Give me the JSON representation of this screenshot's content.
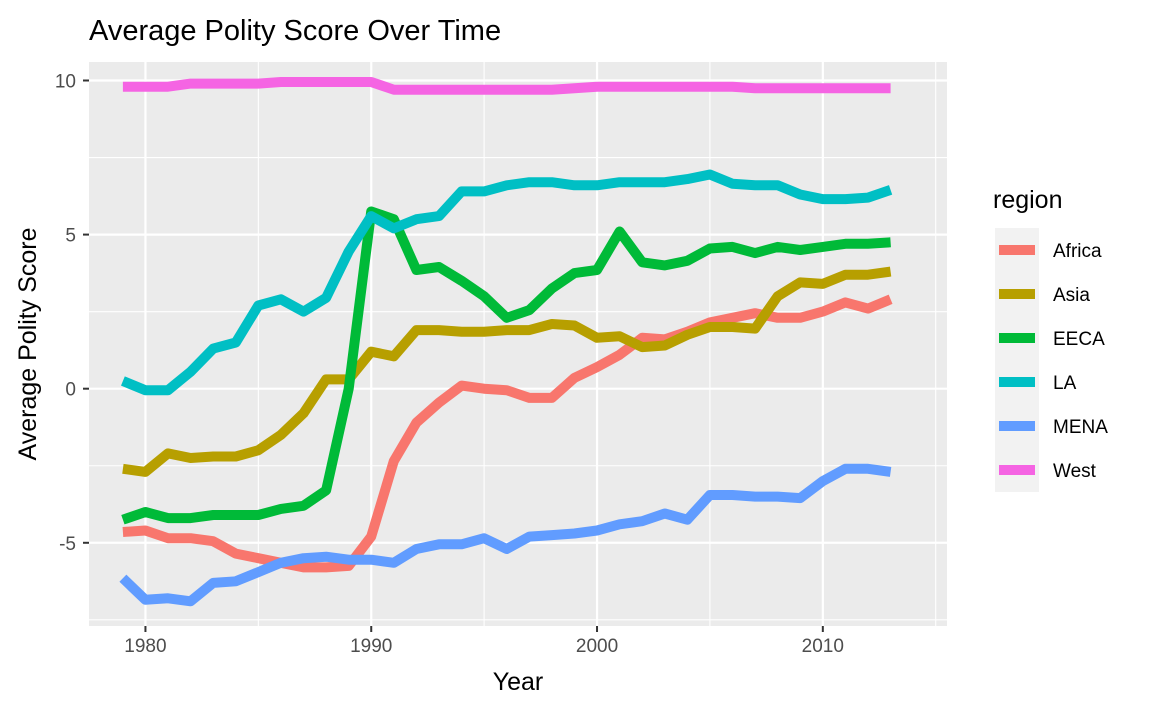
{
  "chart_data": {
    "type": "line",
    "title": "Average Polity Score Over Time",
    "xlabel": "Year",
    "ylabel": "Average Polity Score",
    "xlim": [
      1977.5,
      2015.5
    ],
    "ylim": [
      -7.7,
      10.6
    ],
    "x_ticks": [
      1980,
      1990,
      2000,
      2010
    ],
    "x_tick_labels": [
      "1980",
      "1990",
      "2000",
      "2010"
    ],
    "y_ticks": [
      -5,
      0,
      5,
      10
    ],
    "y_tick_labels": [
      "-5",
      "0",
      "5",
      "10"
    ],
    "grid": true,
    "legend": {
      "title": "region",
      "position": "right"
    },
    "x": [
      1979,
      1980,
      1981,
      1982,
      1983,
      1984,
      1985,
      1986,
      1987,
      1988,
      1989,
      1990,
      1991,
      1992,
      1993,
      1994,
      1995,
      1996,
      1997,
      1998,
      1999,
      2000,
      2001,
      2002,
      2003,
      2004,
      2005,
      2006,
      2007,
      2008,
      2009,
      2010,
      2011,
      2012,
      2013
    ],
    "series": [
      {
        "name": "Africa",
        "color": "#F8766D",
        "values": [
          -4.65,
          -4.6,
          -4.85,
          -4.85,
          -4.95,
          -5.35,
          -5.5,
          -5.65,
          -5.8,
          -5.8,
          -5.75,
          -4.8,
          -2.35,
          -1.1,
          -0.45,
          0.1,
          0.0,
          -0.05,
          -0.3,
          -0.3,
          0.35,
          0.7,
          1.1,
          1.65,
          1.6,
          1.85,
          2.15,
          2.3,
          2.45,
          2.3,
          2.3,
          2.5,
          2.8,
          2.6,
          2.9
        ]
      },
      {
        "name": "Asia",
        "color": "#B79F00",
        "values": [
          -2.6,
          -2.7,
          -2.1,
          -2.25,
          -2.2,
          -2.2,
          -2.0,
          -1.5,
          -0.8,
          0.3,
          0.3,
          1.2,
          1.05,
          1.9,
          1.9,
          1.85,
          1.85,
          1.9,
          1.9,
          2.1,
          2.05,
          1.65,
          1.7,
          1.35,
          1.4,
          1.75,
          2.0,
          2.0,
          1.95,
          3.0,
          3.45,
          3.4,
          3.7,
          3.7,
          3.8
        ]
      },
      {
        "name": "EECA",
        "color": "#00BA38",
        "values": [
          -4.25,
          -4.0,
          -4.2,
          -4.2,
          -4.1,
          -4.1,
          -4.1,
          -3.9,
          -3.8,
          -3.3,
          0.0,
          5.75,
          5.5,
          3.85,
          3.95,
          3.5,
          3.0,
          2.3,
          2.55,
          3.25,
          3.75,
          3.85,
          5.1,
          4.1,
          4.0,
          4.15,
          4.55,
          4.6,
          4.4,
          4.6,
          4.5,
          4.6,
          4.7,
          4.7,
          4.75
        ]
      },
      {
        "name": "LA",
        "color": "#00BFC4",
        "values": [
          0.25,
          -0.05,
          -0.05,
          0.55,
          1.3,
          1.5,
          2.7,
          2.9,
          2.5,
          2.95,
          4.45,
          5.6,
          5.2,
          5.5,
          5.6,
          6.4,
          6.4,
          6.6,
          6.7,
          6.7,
          6.6,
          6.6,
          6.7,
          6.7,
          6.7,
          6.8,
          6.95,
          6.65,
          6.6,
          6.6,
          6.3,
          6.15,
          6.15,
          6.2,
          6.45
        ]
      },
      {
        "name": "MENA",
        "color": "#619CFF",
        "values": [
          -6.15,
          -6.85,
          -6.8,
          -6.9,
          -6.3,
          -6.25,
          -5.95,
          -5.65,
          -5.5,
          -5.45,
          -5.55,
          -5.55,
          -5.65,
          -5.2,
          -5.05,
          -5.05,
          -4.85,
          -5.2,
          -4.8,
          -4.75,
          -4.7,
          -4.6,
          -4.4,
          -4.3,
          -4.05,
          -4.25,
          -3.45,
          -3.45,
          -3.5,
          -3.5,
          -3.55,
          -3.0,
          -2.6,
          -2.6,
          -2.7
        ]
      },
      {
        "name": "West",
        "color": "#F564E3",
        "values": [
          9.8,
          9.8,
          9.8,
          9.9,
          9.9,
          9.9,
          9.9,
          9.95,
          9.95,
          9.95,
          9.95,
          9.95,
          9.7,
          9.7,
          9.7,
          9.7,
          9.7,
          9.7,
          9.7,
          9.7,
          9.75,
          9.8,
          9.8,
          9.8,
          9.8,
          9.8,
          9.8,
          9.8,
          9.75,
          9.75,
          9.75,
          9.75,
          9.75,
          9.75,
          9.75
        ]
      }
    ]
  }
}
